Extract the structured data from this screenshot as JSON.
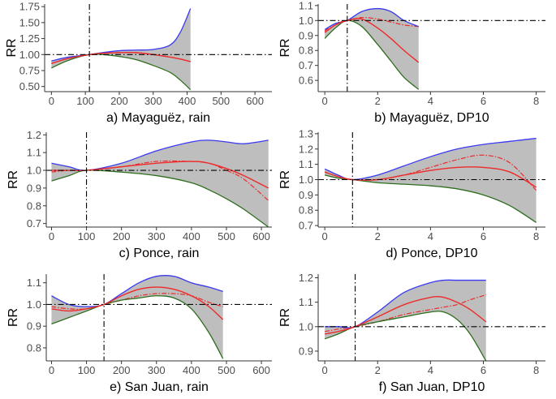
{
  "colors": {
    "band_fill": "#bebebe",
    "upper": "#3a3af0",
    "lower": "#2e6e1e",
    "estimate": "#ee2a2a",
    "reference": "#000000",
    "axis": "#333333",
    "tick_text": "#4d4d4d"
  },
  "chart_data": [
    {
      "id": "a",
      "type": "line",
      "caption": "a) Mayaguëz, rain",
      "ylabel": "RR",
      "xlim": [
        -20,
        650
      ],
      "ylim": [
        0.42,
        1.79
      ],
      "xticks": [
        0,
        100,
        200,
        300,
        400,
        500,
        600
      ],
      "yticks": [
        0.5,
        0.75,
        1.0,
        1.25,
        1.5,
        1.75
      ],
      "ytick_labels": [
        "0.50",
        "0.75",
        "1.00",
        "1.25",
        "1.50",
        "1.75"
      ],
      "hline": 1.0,
      "vline": 112,
      "x": [
        0,
        50,
        112,
        150,
        200,
        250,
        300,
        350,
        380,
        410
      ],
      "upper": [
        0.9,
        0.96,
        1.0,
        1.03,
        1.06,
        1.07,
        1.08,
        1.15,
        1.35,
        1.72
      ],
      "estimate": [
        0.86,
        0.94,
        1.0,
        1.02,
        1.03,
        1.03,
        1.0,
        0.96,
        0.93,
        0.89
      ],
      "lower": [
        0.79,
        0.91,
        1.0,
        1.0,
        0.97,
        0.92,
        0.83,
        0.72,
        0.6,
        0.45
      ],
      "dashed": [
        0.86,
        0.94,
        1.0,
        1.02,
        1.03,
        1.03,
        1.0,
        0.96,
        0.93,
        0.89
      ]
    },
    {
      "id": "b",
      "type": "line",
      "caption": "b) Mayaguëz, DP10",
      "ylabel": "RR",
      "xlim": [
        -0.25,
        8.35
      ],
      "ylim": [
        0.525,
        1.11
      ],
      "xticks": [
        0,
        2,
        4,
        6,
        8
      ],
      "yticks": [
        0.6,
        0.7,
        0.8,
        0.9,
        1.0,
        1.1
      ],
      "ytick_labels": [
        "0.6",
        "0.7",
        "0.8",
        "0.9",
        "1.0",
        "1.1"
      ],
      "hline": 1.0,
      "vline": 0.85,
      "x": [
        0,
        0.4,
        0.85,
        1.4,
        2.0,
        2.5,
        3.0,
        3.55
      ],
      "upper": [
        0.94,
        0.98,
        1.0,
        1.06,
        1.08,
        1.06,
        1.0,
        0.96
      ],
      "estimate": [
        0.92,
        0.97,
        1.0,
        1.01,
        0.95,
        0.88,
        0.8,
        0.72
      ],
      "lower": [
        0.88,
        0.95,
        1.0,
        0.96,
        0.84,
        0.73,
        0.62,
        0.54
      ],
      "dashed": [
        0.93,
        0.98,
        1.0,
        1.02,
        1.01,
        0.99,
        0.97,
        0.96
      ]
    },
    {
      "id": "c",
      "type": "line",
      "caption": "c) Ponce, rain",
      "ylabel": "RR",
      "xlim": [
        -15,
        630
      ],
      "ylim": [
        0.68,
        1.215
      ],
      "xticks": [
        0,
        100,
        200,
        300,
        400,
        500,
        600
      ],
      "yticks": [
        0.7,
        0.8,
        0.9,
        1.0,
        1.1,
        1.2
      ],
      "ytick_labels": [
        "0.7",
        "0.8",
        "0.9",
        "1.0",
        "1.1",
        "1.2"
      ],
      "hline": 1.0,
      "vline": 100,
      "x": [
        0,
        50,
        100,
        200,
        300,
        400,
        450,
        500,
        550,
        620
      ],
      "upper": [
        1.04,
        1.02,
        1.0,
        1.04,
        1.11,
        1.16,
        1.17,
        1.16,
        1.15,
        1.17
      ],
      "estimate": [
        1.0,
        1.0,
        1.0,
        1.02,
        1.04,
        1.05,
        1.04,
        1.01,
        0.97,
        0.9
      ],
      "lower": [
        0.94,
        0.97,
        1.0,
        0.99,
        0.97,
        0.93,
        0.89,
        0.84,
        0.78,
        0.68
      ],
      "dashed": [
        0.99,
        1.0,
        1.0,
        1.02,
        1.05,
        1.05,
        1.04,
        1.0,
        0.95,
        0.83
      ]
    },
    {
      "id": "d",
      "type": "line",
      "caption": "d) Ponce, DP10",
      "ylabel": "RR",
      "xlim": [
        -0.25,
        8.35
      ],
      "ylim": [
        0.69,
        1.31
      ],
      "xticks": [
        0,
        2,
        4,
        6,
        8
      ],
      "yticks": [
        0.7,
        0.8,
        0.9,
        1.0,
        1.1,
        1.2,
        1.3
      ],
      "ytick_labels": [
        "0.7",
        "0.8",
        "0.9",
        "1.0",
        "1.1",
        "1.2",
        "1.3"
      ],
      "hline": 1.0,
      "vline": 1.05,
      "x": [
        0,
        0.5,
        1.05,
        2,
        3,
        4,
        5,
        6,
        7,
        8
      ],
      "upper": [
        1.07,
        1.03,
        1.0,
        1.03,
        1.09,
        1.15,
        1.2,
        1.23,
        1.25,
        1.27
      ],
      "estimate": [
        1.05,
        1.02,
        1.0,
        1.0,
        1.03,
        1.06,
        1.08,
        1.08,
        1.05,
        0.95
      ],
      "lower": [
        1.03,
        1.01,
        1.0,
        0.98,
        0.97,
        0.96,
        0.94,
        0.9,
        0.83,
        0.72
      ],
      "dashed": [
        1.05,
        1.02,
        1.0,
        1.0,
        1.03,
        1.08,
        1.13,
        1.16,
        1.11,
        0.93
      ]
    },
    {
      "id": "e",
      "type": "line",
      "caption": "e) San Juan, rain",
      "ylabel": "RR",
      "xlim": [
        -15,
        630
      ],
      "ylim": [
        0.74,
        1.14
      ],
      "xticks": [
        0,
        100,
        200,
        300,
        400,
        500,
        600
      ],
      "yticks": [
        0.8,
        0.9,
        1.0,
        1.1
      ],
      "ytick_labels": [
        "0.8",
        "0.9",
        "1.0",
        "1.1"
      ],
      "hline": 1.0,
      "vline": 150,
      "x": [
        0,
        50,
        100,
        150,
        200,
        250,
        300,
        350,
        400,
        450,
        490
      ],
      "upper": [
        1.04,
        1.0,
        0.99,
        1.0,
        1.05,
        1.1,
        1.13,
        1.13,
        1.1,
        1.08,
        1.06
      ],
      "estimate": [
        0.98,
        0.97,
        0.98,
        1.0,
        1.04,
        1.07,
        1.08,
        1.07,
        1.04,
        0.99,
        0.93
      ],
      "lower": [
        0.91,
        0.94,
        0.97,
        1.0,
        1.02,
        1.03,
        1.04,
        1.03,
        0.98,
        0.87,
        0.75
      ],
      "dashed": [
        0.99,
        0.98,
        0.98,
        1.0,
        1.02,
        1.04,
        1.05,
        1.05,
        1.04,
        1.01,
        0.99
      ]
    },
    {
      "id": "f",
      "type": "line",
      "caption": "f) San Juan, DP10",
      "ylabel": "RR",
      "xlim": [
        -0.25,
        8.35
      ],
      "ylim": [
        0.86,
        1.215
      ],
      "xticks": [
        0,
        2,
        4,
        6,
        8
      ],
      "yticks": [
        0.9,
        1.0,
        1.1,
        1.2
      ],
      "ytick_labels": [
        "0.9",
        "1.0",
        "1.1",
        "1.2"
      ],
      "hline": 1.0,
      "vline": 1.15,
      "x": [
        0,
        0.5,
        1.15,
        2,
        3,
        4,
        4.5,
        5,
        5.5,
        6.1
      ],
      "upper": [
        1.0,
        1.0,
        1.0,
        1.06,
        1.14,
        1.18,
        1.19,
        1.19,
        1.19,
        1.19
      ],
      "estimate": [
        0.97,
        0.98,
        1.0,
        1.04,
        1.09,
        1.12,
        1.12,
        1.1,
        1.07,
        1.02
      ],
      "lower": [
        0.95,
        0.97,
        1.0,
        1.02,
        1.04,
        1.06,
        1.06,
        1.03,
        0.97,
        0.86
      ],
      "dashed": [
        0.98,
        0.99,
        1.0,
        1.02,
        1.05,
        1.07,
        1.08,
        1.09,
        1.11,
        1.13
      ]
    }
  ]
}
